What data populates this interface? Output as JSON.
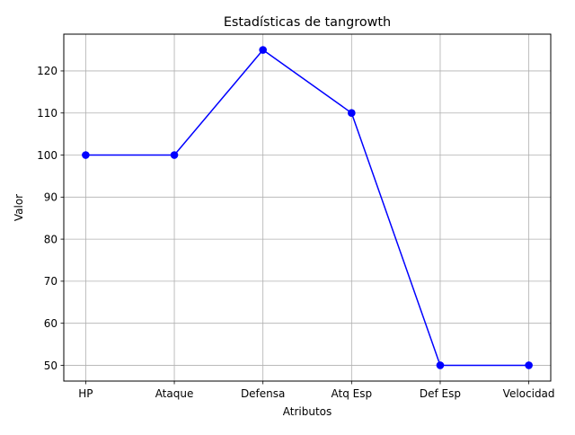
{
  "chart_data": {
    "type": "line",
    "title": "Estadísticas de tangrowth",
    "xlabel": "Atributos",
    "ylabel": "Valor",
    "categories": [
      "HP",
      "Ataque",
      "Defensa",
      "Atq Esp",
      "Def Esp",
      "Velocidad"
    ],
    "series": [
      {
        "name": "tangrowth",
        "values": [
          100,
          100,
          125,
          110,
          50,
          50
        ],
        "color": "#0000ff",
        "marker": "circle"
      }
    ],
    "ylim": [
      46.25,
      128.75
    ],
    "yticks": [
      50,
      60,
      70,
      80,
      90,
      100,
      110,
      120
    ],
    "grid": true,
    "legend": "none"
  }
}
